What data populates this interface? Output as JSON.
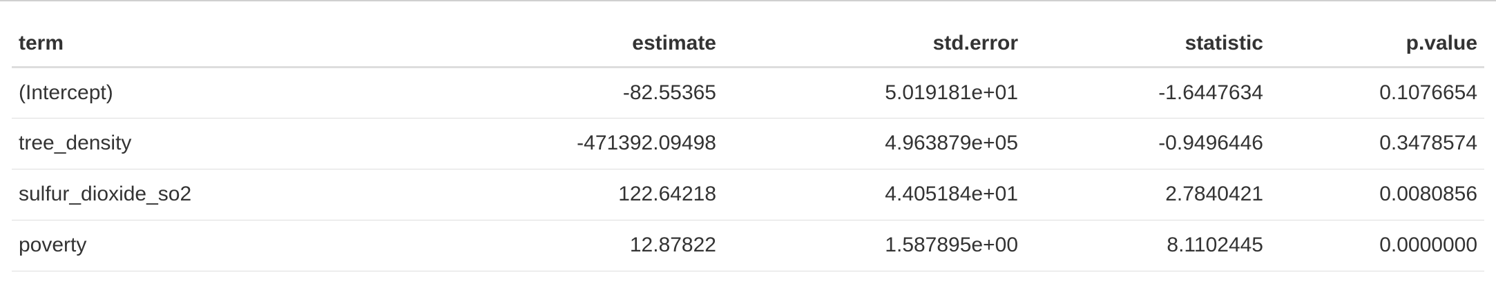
{
  "table": {
    "columns": [
      "term",
      "estimate",
      "std.error",
      "statistic",
      "p.value"
    ],
    "rows": [
      [
        "(Intercept)",
        "-82.55365",
        "5.019181e+01",
        "-1.6447634",
        "0.1076654"
      ],
      [
        "tree_density",
        "-471392.09498",
        "4.963879e+05",
        "-0.9496446",
        "0.3478574"
      ],
      [
        "sulfur_dioxide_so2",
        "122.64218",
        "4.405184e+01",
        "2.7840421",
        "0.0080856"
      ],
      [
        "poverty",
        "12.87822",
        "1.587895e+00",
        "8.1102445",
        "0.0000000"
      ]
    ]
  }
}
